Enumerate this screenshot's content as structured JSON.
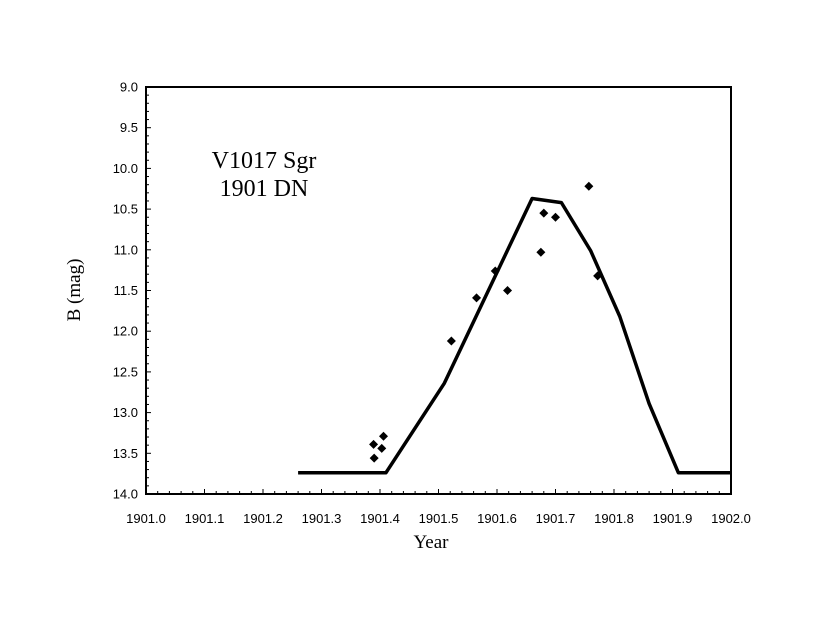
{
  "chart_data": {
    "type": "scatter",
    "title": "",
    "xlabel": "Year",
    "ylabel": "B (mag)",
    "xlim": [
      1901.0,
      1902.0
    ],
    "ylim": [
      9.0,
      14.0
    ],
    "y_inverted": true,
    "xticks": [
      "1901.0",
      "1901.1",
      "1901.2",
      "1901.3",
      "1901.4",
      "1901.5",
      "1901.6",
      "1901.7",
      "1901.8",
      "1901.9",
      "1902.0"
    ],
    "yticks": [
      "9.0",
      "9.5",
      "10.0",
      "10.5",
      "11.0",
      "11.5",
      "12.0",
      "12.5",
      "13.0",
      "13.5",
      "14.0"
    ],
    "grid": false,
    "annotation": [
      "V1017 Sgr",
      "1901 DN"
    ],
    "series": [
      {
        "kind": "scatter",
        "marker": "diamond",
        "color": "#000000",
        "points": [
          [
            1901.389,
            13.39
          ],
          [
            1901.39,
            13.56
          ],
          [
            1901.403,
            13.44
          ],
          [
            1901.406,
            13.29
          ],
          [
            1901.522,
            12.12
          ],
          [
            1901.565,
            11.59
          ],
          [
            1901.597,
            11.26
          ],
          [
            1901.618,
            11.5
          ],
          [
            1901.675,
            11.03
          ],
          [
            1901.68,
            10.55
          ],
          [
            1901.7,
            10.6
          ],
          [
            1901.757,
            10.22
          ],
          [
            1901.772,
            11.32
          ]
        ]
      },
      {
        "kind": "line",
        "color": "#000000",
        "points": [
          [
            1901.26,
            13.74
          ],
          [
            1901.41,
            13.74
          ],
          [
            1901.51,
            12.64
          ],
          [
            1901.66,
            10.37
          ],
          [
            1901.71,
            10.42
          ],
          [
            1901.76,
            11.01
          ],
          [
            1901.81,
            11.82
          ],
          [
            1901.86,
            12.89
          ],
          [
            1901.91,
            13.74
          ],
          [
            1902.0,
            13.74
          ]
        ]
      }
    ]
  }
}
